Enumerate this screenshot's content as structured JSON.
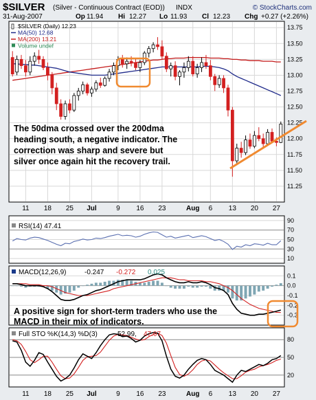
{
  "header": {
    "symbol": "$SILVER",
    "name": "(Silver - Continuous Contract (EOD))",
    "exchange": "INDX",
    "credit": "© StockCharts.com",
    "date": "31-Aug-2007",
    "ohlc": [
      {
        "k": "Op",
        "v": "11.94"
      },
      {
        "k": "Hi",
        "v": "12.27"
      },
      {
        "k": "Lo",
        "v": "11.93"
      },
      {
        "k": "Cl",
        "v": "12.23"
      },
      {
        "k": "Chg",
        "v": "+0.27 (+2.26%)"
      }
    ]
  },
  "colors": {
    "up": "#ffffff",
    "down": "#d32020",
    "ma50": "#1f2a8a",
    "ma200": "#c41a1a",
    "highlight": "#f08a30",
    "rsi": "#5a6fb0",
    "macd": "#000000",
    "signal": "#d32020",
    "hist": "#7fa6b3"
  },
  "chart_data": [
    {
      "type": "candlestick",
      "legend": [
        {
          "text": "$SILVER (Daily) 12.23",
          "color": "#000000",
          "marker": "candle"
        },
        {
          "text": "MA(50) 12.68",
          "color": "#1f2a8a",
          "marker": "line"
        },
        {
          "text": "MA(200) 13.21",
          "color": "#c41a1a",
          "marker": "line"
        },
        {
          "text": "Volume undef",
          "color": "#2e8b57",
          "marker": "box"
        }
      ],
      "ylim": [
        11.0,
        13.85
      ],
      "yticks": [
        "13.75",
        "13.50",
        "13.25",
        "13.00",
        "12.75",
        "12.50",
        "12.25",
        "12.00",
        "11.75",
        "11.50",
        "11.25"
      ],
      "x_labels": [
        {
          "i": 3,
          "t": "11"
        },
        {
          "i": 8,
          "t": "18"
        },
        {
          "i": 13,
          "t": "25"
        },
        {
          "i": 18,
          "t": "Jul"
        },
        {
          "i": 24,
          "t": "9"
        },
        {
          "i": 29,
          "t": "16"
        },
        {
          "i": 34,
          "t": "23"
        },
        {
          "i": 41,
          "t": "Aug"
        },
        {
          "i": 45,
          "t": "6"
        },
        {
          "i": 50,
          "t": "13"
        },
        {
          "i": 55,
          "t": "20"
        },
        {
          "i": 60,
          "t": "27"
        }
      ],
      "candles": [
        [
          13.28,
          13.38,
          12.98,
          13.02
        ],
        [
          13.05,
          13.31,
          13.0,
          13.25
        ],
        [
          13.25,
          13.32,
          13.1,
          13.15
        ],
        [
          13.15,
          13.24,
          12.98,
          13.05
        ],
        [
          13.05,
          13.3,
          13.0,
          13.22
        ],
        [
          13.22,
          13.36,
          13.15,
          13.3
        ],
        [
          13.3,
          13.4,
          13.18,
          13.25
        ],
        [
          13.25,
          13.3,
          13.08,
          13.12
        ],
        [
          13.12,
          13.2,
          12.92,
          13.0
        ],
        [
          13.0,
          13.05,
          12.7,
          12.8
        ],
        [
          12.8,
          12.88,
          12.45,
          12.55
        ],
        [
          12.55,
          12.62,
          12.3,
          12.35
        ],
        [
          12.35,
          12.6,
          12.3,
          12.55
        ],
        [
          12.55,
          12.62,
          12.4,
          12.45
        ],
        [
          12.45,
          12.72,
          12.42,
          12.68
        ],
        [
          12.68,
          12.8,
          12.6,
          12.75
        ],
        [
          12.75,
          12.9,
          12.7,
          12.85
        ],
        [
          12.85,
          12.88,
          12.68,
          12.72
        ],
        [
          12.72,
          12.82,
          12.66,
          12.78
        ],
        [
          12.78,
          12.92,
          12.74,
          12.88
        ],
        [
          12.88,
          12.96,
          12.8,
          12.84
        ],
        [
          12.84,
          12.98,
          12.82,
          12.95
        ],
        [
          12.95,
          13.1,
          12.9,
          13.05
        ],
        [
          13.05,
          13.2,
          13.0,
          13.15
        ],
        [
          13.15,
          13.3,
          13.08,
          13.25
        ],
        [
          13.25,
          13.32,
          13.12,
          13.18
        ],
        [
          13.18,
          13.28,
          13.1,
          13.22
        ],
        [
          13.22,
          13.3,
          13.14,
          13.2
        ],
        [
          13.2,
          13.26,
          13.08,
          13.12
        ],
        [
          13.12,
          13.24,
          13.05,
          13.2
        ],
        [
          13.2,
          13.38,
          13.16,
          13.35
        ],
        [
          13.35,
          13.46,
          13.28,
          13.42
        ],
        [
          13.42,
          13.52,
          13.36,
          13.48
        ],
        [
          13.48,
          13.6,
          13.4,
          13.45
        ],
        [
          13.45,
          13.55,
          13.25,
          13.3
        ],
        [
          13.3,
          13.36,
          13.05,
          13.1
        ],
        [
          13.1,
          13.2,
          12.98,
          13.15
        ],
        [
          13.15,
          13.22,
          12.92,
          12.98
        ],
        [
          12.98,
          13.08,
          12.84,
          13.05
        ],
        [
          13.05,
          13.2,
          12.96,
          13.12
        ],
        [
          13.12,
          13.3,
          13.06,
          13.22
        ],
        [
          13.22,
          13.3,
          12.98,
          13.02
        ],
        [
          13.02,
          13.18,
          12.96,
          13.12
        ],
        [
          13.12,
          13.28,
          13.05,
          13.2
        ],
        [
          13.2,
          13.32,
          13.1,
          13.15
        ],
        [
          13.15,
          13.24,
          12.92,
          12.98
        ],
        [
          12.98,
          13.02,
          12.75,
          12.85
        ],
        [
          12.85,
          13.0,
          12.8,
          12.95
        ],
        [
          12.95,
          13.0,
          12.72,
          12.8
        ],
        [
          12.8,
          12.85,
          12.35,
          12.45
        ],
        [
          12.45,
          12.5,
          11.4,
          11.65
        ],
        [
          11.65,
          11.92,
          11.58,
          11.85
        ],
        [
          11.85,
          11.95,
          11.7,
          11.78
        ],
        [
          11.78,
          12.05,
          11.74,
          11.98
        ],
        [
          11.98,
          12.08,
          11.84,
          11.88
        ],
        [
          11.88,
          12.12,
          11.85,
          12.05
        ],
        [
          12.05,
          12.18,
          11.96,
          12.0
        ],
        [
          12.0,
          12.08,
          11.86,
          11.92
        ],
        [
          11.92,
          12.15,
          11.9,
          12.1
        ],
        [
          12.1,
          12.16,
          11.95,
          11.96
        ],
        [
          11.96,
          12.02,
          11.88,
          11.94
        ],
        [
          11.94,
          12.27,
          11.93,
          12.23
        ]
      ],
      "ma50": [
        13.18,
        13.18,
        13.17,
        13.17,
        13.16,
        13.16,
        13.15,
        13.14,
        13.13,
        13.12,
        13.11,
        13.09,
        13.07,
        13.05,
        13.04,
        13.03,
        13.02,
        13.01,
        13.0,
        13.0,
        13.0,
        13.0,
        13.01,
        13.02,
        13.03,
        13.04,
        13.05,
        13.06,
        13.07,
        13.08,
        13.09,
        13.1,
        13.11,
        13.12,
        13.13,
        13.13,
        13.13,
        13.13,
        13.13,
        13.13,
        13.13,
        13.13,
        13.13,
        13.14,
        13.14,
        13.14,
        13.13,
        13.12,
        13.1,
        13.07,
        13.02,
        12.98,
        12.95,
        12.92,
        12.89,
        12.86,
        12.83,
        12.8,
        12.77,
        12.74,
        12.71,
        12.68
      ],
      "ma200": [
        12.92,
        12.93,
        12.94,
        12.95,
        12.96,
        12.97,
        12.98,
        12.99,
        13.0,
        13.01,
        13.02,
        13.03,
        13.04,
        13.05,
        13.06,
        13.07,
        13.08,
        13.09,
        13.1,
        13.11,
        13.12,
        13.13,
        13.14,
        13.15,
        13.16,
        13.17,
        13.18,
        13.19,
        13.2,
        13.21,
        13.22,
        13.23,
        13.24,
        13.24,
        13.25,
        13.26,
        13.26,
        13.27,
        13.27,
        13.27,
        13.28,
        13.28,
        13.28,
        13.28,
        13.28,
        13.27,
        13.27,
        13.27,
        13.26,
        13.26,
        13.25,
        13.25,
        13.24,
        13.24,
        13.23,
        13.23,
        13.23,
        13.22,
        13.22,
        13.22,
        13.21,
        13.21
      ],
      "annotation": "The 50dma crossed over the 200dma heading south, a negative indicator. The correction was sharp and severe but silver once again hit the recovery trail."
    },
    {
      "type": "line",
      "legend": "RSI(14) 47.41",
      "ylim": [
        0,
        100
      ],
      "yticks": [
        "90",
        "70",
        "50",
        "30",
        "10"
      ],
      "values": [
        47,
        52,
        50,
        49,
        53,
        55,
        54,
        51,
        48,
        44,
        40,
        37,
        42,
        41,
        46,
        48,
        51,
        49,
        50,
        53,
        52,
        54,
        57,
        59,
        61,
        58,
        59,
        58,
        55,
        57,
        61,
        64,
        66,
        65,
        60,
        55,
        57,
        53,
        55,
        57,
        59,
        54,
        56,
        58,
        56,
        52,
        48,
        50,
        46,
        40,
        29,
        36,
        34,
        39,
        37,
        41,
        40,
        38,
        42,
        39,
        39,
        47.41
      ]
    },
    {
      "type": "line",
      "legend": [
        {
          "text": "MACD(12,26,9)",
          "color": "#000000"
        },
        {
          "text": "-0.247",
          "color": "#000000"
        },
        {
          "text": "-0.272",
          "color": "#d32020"
        },
        {
          "text": "0.025",
          "color": "#2a8a80"
        }
      ],
      "ylim": [
        -0.4,
        0.2
      ],
      "yticks": [
        "0.1",
        "0.0",
        "-0.1",
        "-0.2",
        "-0.3"
      ],
      "macd": [
        0.02,
        0.02,
        0.01,
        0.0,
        0.0,
        0.0,
        0.0,
        -0.01,
        -0.03,
        -0.06,
        -0.1,
        -0.14,
        -0.15,
        -0.15,
        -0.14,
        -0.12,
        -0.1,
        -0.09,
        -0.07,
        -0.05,
        -0.04,
        -0.02,
        0.0,
        0.02,
        0.04,
        0.05,
        0.06,
        0.06,
        0.06,
        0.06,
        0.07,
        0.09,
        0.11,
        0.12,
        0.11,
        0.08,
        0.06,
        0.04,
        0.03,
        0.03,
        0.04,
        0.03,
        0.03,
        0.04,
        0.03,
        0.01,
        -0.02,
        -0.03,
        -0.05,
        -0.09,
        -0.18,
        -0.24,
        -0.28,
        -0.29,
        -0.3,
        -0.3,
        -0.29,
        -0.29,
        -0.28,
        -0.27,
        -0.26,
        -0.247
      ],
      "signal": [
        0.02,
        0.02,
        0.02,
        0.02,
        0.01,
        0.01,
        0.01,
        0.0,
        0.0,
        -0.01,
        -0.03,
        -0.05,
        -0.07,
        -0.08,
        -0.09,
        -0.1,
        -0.1,
        -0.1,
        -0.09,
        -0.08,
        -0.07,
        -0.06,
        -0.05,
        -0.03,
        -0.02,
        -0.01,
        0.0,
        0.01,
        0.02,
        0.03,
        0.04,
        0.05,
        0.06,
        0.07,
        0.08,
        0.08,
        0.08,
        0.07,
        0.06,
        0.06,
        0.05,
        0.05,
        0.05,
        0.05,
        0.04,
        0.04,
        0.03,
        0.02,
        0.0,
        -0.02,
        -0.05,
        -0.09,
        -0.13,
        -0.16,
        -0.19,
        -0.21,
        -0.23,
        -0.24,
        -0.25,
        -0.26,
        -0.27,
        -0.272
      ],
      "annotation": "A positive sign for short-term traders who use the MACD in their mix of indicators."
    },
    {
      "type": "line",
      "legend": [
        {
          "text": "Full STO %K(14,3) %D(3)",
          "color": "#000000"
        },
        {
          "text": "52.99,",
          "color": "#000000"
        },
        {
          "text": "47.07",
          "color": "#d32020"
        }
      ],
      "ylim": [
        0,
        100
      ],
      "yticks": [
        "80",
        "50",
        "20"
      ],
      "k": [
        78,
        76,
        62,
        42,
        35,
        45,
        58,
        55,
        42,
        30,
        18,
        10,
        14,
        20,
        32,
        46,
        56,
        52,
        48,
        58,
        70,
        80,
        88,
        90,
        89,
        85,
        86,
        82,
        76,
        79,
        86,
        90,
        92,
        91,
        78,
        52,
        30,
        18,
        15,
        20,
        30,
        38,
        45,
        48,
        46,
        38,
        28,
        24,
        20,
        14,
        8,
        20,
        28,
        26,
        30,
        34,
        38,
        36,
        40,
        46,
        48,
        52.99
      ],
      "d": [
        80,
        78,
        72,
        60,
        46,
        41,
        46,
        52,
        52,
        42,
        30,
        19,
        14,
        15,
        22,
        33,
        45,
        51,
        52,
        53,
        59,
        69,
        79,
        86,
        89,
        88,
        87,
        84,
        81,
        79,
        80,
        85,
        89,
        91,
        87,
        74,
        53,
        33,
        21,
        18,
        22,
        29,
        38,
        44,
        46,
        44,
        37,
        30,
        24,
        19,
        14,
        14,
        19,
        25,
        28,
        30,
        34,
        36,
        38,
        41,
        45,
        47.07
      ]
    }
  ]
}
